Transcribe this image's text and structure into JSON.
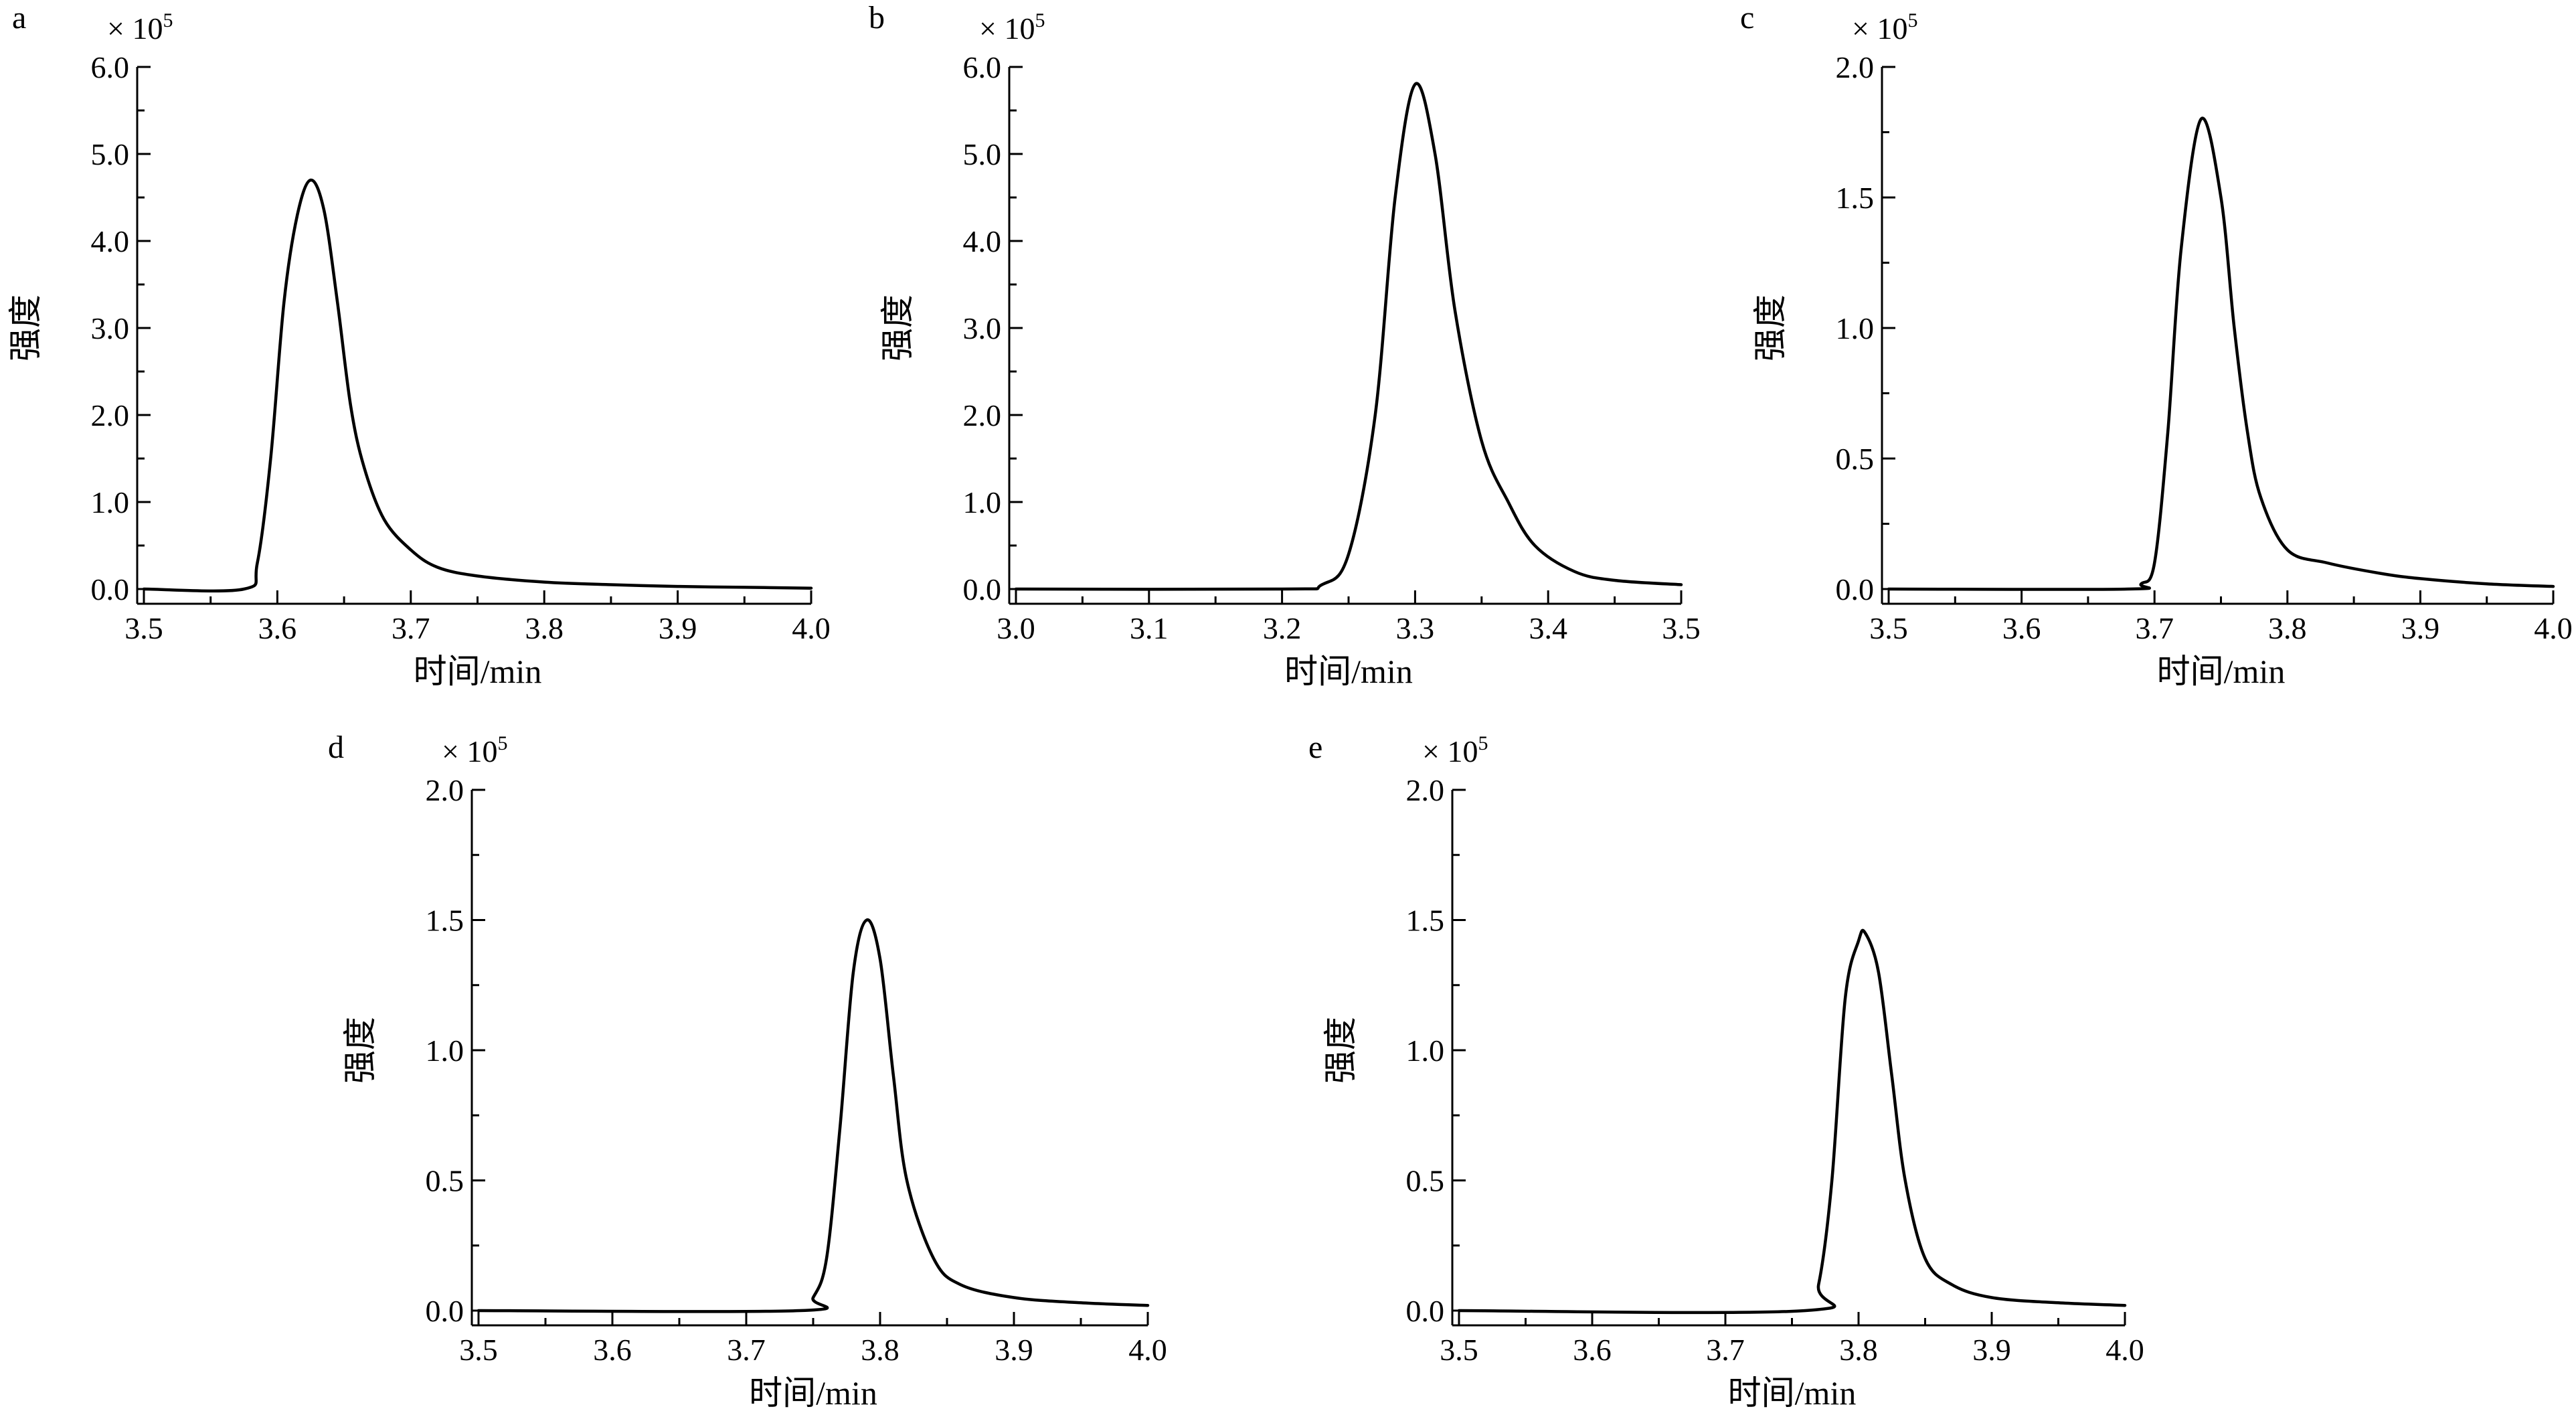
{
  "chart_data": [
    {
      "panel": "a",
      "type": "line",
      "xlabel": "时间/min",
      "ylabel": "强度",
      "multiplier": "× 10",
      "multiplier_exp": "5",
      "xlim": [
        3.5,
        4.0
      ],
      "ylim": [
        0.0,
        6.0
      ],
      "xticks": [
        "3.5",
        "3.6",
        "3.7",
        "3.8",
        "3.9",
        "4.0"
      ],
      "yticks": [
        "0.0",
        "1.0",
        "2.0",
        "3.0",
        "4.0",
        "5.0",
        "6.0"
      ],
      "series": [
        {
          "x": [
            3.5,
            3.575,
            3.585,
            3.595,
            3.605,
            3.615,
            3.625,
            3.635,
            3.645,
            3.655,
            3.665,
            3.68,
            3.7,
            3.72,
            3.75,
            3.8,
            3.85,
            3.9,
            3.95,
            4.0
          ],
          "y": [
            0.0,
            0.0,
            0.3,
            1.5,
            3.3,
            4.3,
            4.7,
            4.35,
            3.3,
            2.1,
            1.4,
            0.8,
            0.45,
            0.25,
            0.15,
            0.08,
            0.05,
            0.03,
            0.02,
            0.01
          ]
        }
      ]
    },
    {
      "panel": "b",
      "type": "line",
      "xlabel": "时间/min",
      "ylabel": "强度",
      "multiplier": "× 10",
      "multiplier_exp": "5",
      "xlim": [
        3.0,
        3.5
      ],
      "ylim": [
        0.0,
        6.0
      ],
      "xticks": [
        "3.0",
        "3.1",
        "3.2",
        "3.3",
        "3.4",
        "3.5"
      ],
      "yticks": [
        "0.0",
        "1.0",
        "2.0",
        "3.0",
        "4.0",
        "5.0",
        "6.0"
      ],
      "series": [
        {
          "x": [
            3.0,
            3.2,
            3.23,
            3.25,
            3.27,
            3.285,
            3.3,
            3.315,
            3.33,
            3.35,
            3.37,
            3.39,
            3.42,
            3.45,
            3.5
          ],
          "y": [
            0.0,
            0.0,
            0.05,
            0.4,
            2.0,
            4.5,
            5.8,
            5.0,
            3.2,
            1.7,
            1.0,
            0.5,
            0.2,
            0.1,
            0.05
          ]
        }
      ]
    },
    {
      "panel": "c",
      "type": "line",
      "xlabel": "时间/min",
      "ylabel": "强度",
      "multiplier": "× 10",
      "multiplier_exp": "5",
      "xlim": [
        3.5,
        4.0
      ],
      "ylim": [
        0.0,
        2.0
      ],
      "xticks": [
        "3.5",
        "3.6",
        "3.7",
        "3.8",
        "3.9",
        "4.0"
      ],
      "yticks": [
        "0.0",
        "0.5",
        "1.0",
        "1.5",
        "2.0"
      ],
      "series": [
        {
          "x": [
            3.5,
            3.68,
            3.69,
            3.7,
            3.71,
            3.72,
            3.735,
            3.75,
            3.76,
            3.77,
            3.78,
            3.8,
            3.83,
            3.87,
            3.9,
            3.95,
            4.0
          ],
          "y": [
            0.0,
            0.0,
            0.02,
            0.1,
            0.6,
            1.3,
            1.8,
            1.5,
            1.0,
            0.6,
            0.35,
            0.15,
            0.1,
            0.06,
            0.04,
            0.02,
            0.01
          ]
        }
      ]
    },
    {
      "panel": "d",
      "type": "line",
      "xlabel": "时间/min",
      "ylabel": "强度",
      "multiplier": "× 10",
      "multiplier_exp": "5",
      "xlim": [
        3.5,
        4.0
      ],
      "ylim": [
        0.0,
        2.0
      ],
      "xticks": [
        "3.5",
        "3.6",
        "3.7",
        "3.8",
        "3.9",
        "4.0"
      ],
      "yticks": [
        "0.0",
        "0.5",
        "1.0",
        "1.5",
        "2.0"
      ],
      "series": [
        {
          "x": [
            3.5,
            3.74,
            3.75,
            3.76,
            3.77,
            3.78,
            3.79,
            3.8,
            3.81,
            3.82,
            3.84,
            3.86,
            3.9,
            3.95,
            4.0
          ],
          "y": [
            0.0,
            0.0,
            0.05,
            0.2,
            0.7,
            1.3,
            1.5,
            1.35,
            0.9,
            0.5,
            0.2,
            0.1,
            0.05,
            0.03,
            0.02
          ]
        }
      ]
    },
    {
      "panel": "e",
      "type": "line",
      "xlabel": "时间/min",
      "ylabel": "强度",
      "multiplier": "× 10",
      "multiplier_exp": "5",
      "xlim": [
        3.5,
        4.0
      ],
      "ylim": [
        0.0,
        2.0
      ],
      "xticks": [
        "3.5",
        "3.6",
        "3.7",
        "3.8",
        "3.9",
        "4.0"
      ],
      "yticks": [
        "0.0",
        "0.5",
        "1.0",
        "1.5",
        "2.0"
      ],
      "series": [
        {
          "x": [
            3.5,
            3.76,
            3.77,
            3.78,
            3.79,
            3.8,
            3.805,
            3.815,
            3.825,
            3.835,
            3.85,
            3.87,
            3.9,
            3.95,
            4.0
          ],
          "y": [
            0.0,
            0.0,
            0.1,
            0.5,
            1.2,
            1.42,
            1.45,
            1.3,
            0.9,
            0.5,
            0.2,
            0.1,
            0.05,
            0.03,
            0.02
          ]
        }
      ]
    }
  ]
}
